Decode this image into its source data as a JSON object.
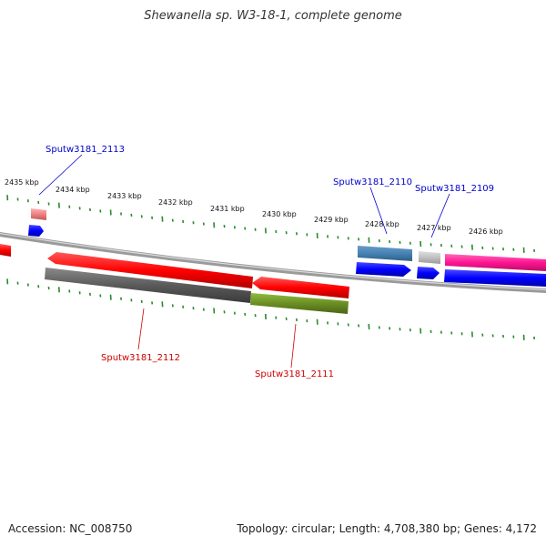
{
  "title": "Shewanella sp. W3-18-1, complete genome",
  "accession_text": "Accession: NC_008750",
  "topology_text": "Topology: circular; Length: 4,708,380 bp; Genes: 4,172",
  "tick_labels": [
    "2435 kbp",
    "2434 kbp",
    "2433 kbp",
    "2432 kbp",
    "2431 kbp",
    "2430 kbp",
    "2429 kbp",
    "2428 kbp",
    "2427 kbp",
    "2426 kbp"
  ],
  "gene_labels": {
    "g2113": "Sputw3181_2113",
    "g2110": "Sputw3181_2110",
    "g2109": "Sputw3181_2109",
    "g2112": "Sputw3181_2112",
    "g2111": "Sputw3181_2111"
  },
  "colors": {
    "label_blue": "#0000cc",
    "label_red": "#cc0000",
    "tick_green": "#2a8a2a",
    "backbone": "#8a8a8a"
  }
}
